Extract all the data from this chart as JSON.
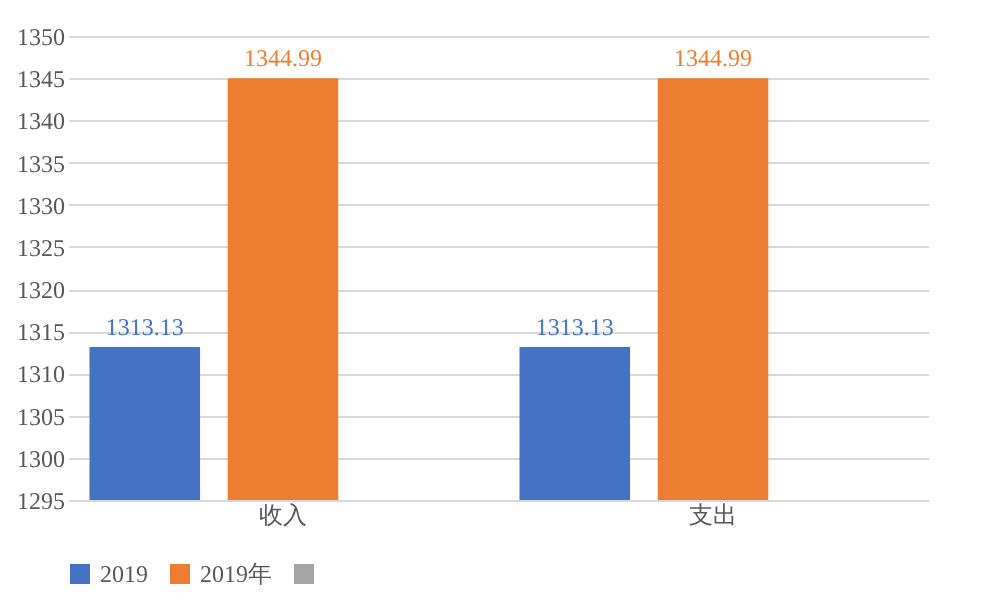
{
  "chart_data": {
    "type": "bar",
    "categories": [
      "收入",
      "支出"
    ],
    "series": [
      {
        "name": "2019",
        "color": "#4472c4",
        "values": [
          1313.13,
          1313.13
        ]
      },
      {
        "name": "2019年",
        "color": "#ed7d31",
        "values": [
          1344.99,
          1344.99
        ]
      },
      {
        "color": "#a5a5a5",
        "values": [
          null,
          null
        ]
      }
    ],
    "ylim": [
      1295,
      1350
    ],
    "yticks": [
      1295,
      1300,
      1305,
      1310,
      1315,
      1320,
      1325,
      1330,
      1335,
      1340,
      1345,
      1350
    ],
    "grid": "y",
    "legend": "bottom",
    "data_labels": true
  }
}
